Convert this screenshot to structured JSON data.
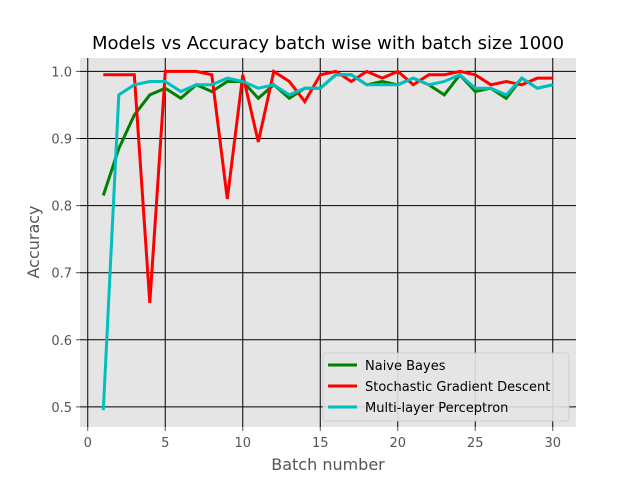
{
  "chart_data": {
    "type": "line",
    "title": "Models vs Accuracy batch wise with batch size 1000",
    "xlabel": "Batch number",
    "ylabel": "Accuracy",
    "xlim": [
      -0.5,
      31.5
    ],
    "ylim": [
      0.47,
      1.02
    ],
    "xticks": [
      0,
      5,
      10,
      15,
      20,
      25,
      30
    ],
    "yticks": [
      0.5,
      0.6,
      0.7,
      0.8,
      0.9,
      1.0
    ],
    "ytick_labels": [
      "0.5",
      "0.6",
      "0.7",
      "0.8",
      "0.9",
      "1.0"
    ],
    "grid": true,
    "legend_position": "lower-right",
    "x": [
      1,
      2,
      3,
      4,
      5,
      6,
      7,
      8,
      9,
      10,
      11,
      12,
      13,
      14,
      15,
      16,
      17,
      18,
      19,
      20,
      21,
      22,
      23,
      24,
      25,
      26,
      27,
      28,
      29,
      30
    ],
    "series": [
      {
        "name": "Naive Bayes",
        "color": "#008000",
        "values": [
          0.815,
          0.885,
          0.935,
          0.965,
          0.975,
          0.96,
          0.98,
          0.97,
          0.985,
          0.985,
          0.96,
          0.98,
          0.96,
          0.975,
          0.975,
          0.995,
          0.995,
          0.98,
          0.985,
          0.98,
          0.99,
          0.98,
          0.965,
          0.995,
          0.97,
          0.975,
          0.96,
          0.99,
          0.975,
          0.98
        ]
      },
      {
        "name": "Stochastic Gradient Descent",
        "color": "#ff0000",
        "values": [
          0.995,
          0.995,
          0.995,
          0.655,
          1.0,
          1.0,
          1.0,
          0.995,
          0.81,
          0.995,
          0.895,
          1.0,
          0.985,
          0.955,
          0.995,
          1.0,
          0.985,
          1.0,
          0.99,
          1.0,
          0.98,
          0.995,
          0.995,
          1.0,
          0.995,
          0.98,
          0.985,
          0.98,
          0.99,
          0.99
        ]
      },
      {
        "name": "Multi-layer Perceptron",
        "color": "#00bfbf",
        "values": [
          0.495,
          0.965,
          0.98,
          0.985,
          0.985,
          0.97,
          0.98,
          0.98,
          0.99,
          0.985,
          0.975,
          0.98,
          0.965,
          0.975,
          0.975,
          0.995,
          0.995,
          0.98,
          0.98,
          0.98,
          0.99,
          0.98,
          0.985,
          0.995,
          0.975,
          0.975,
          0.965,
          0.99,
          0.975,
          0.98
        ]
      }
    ]
  }
}
